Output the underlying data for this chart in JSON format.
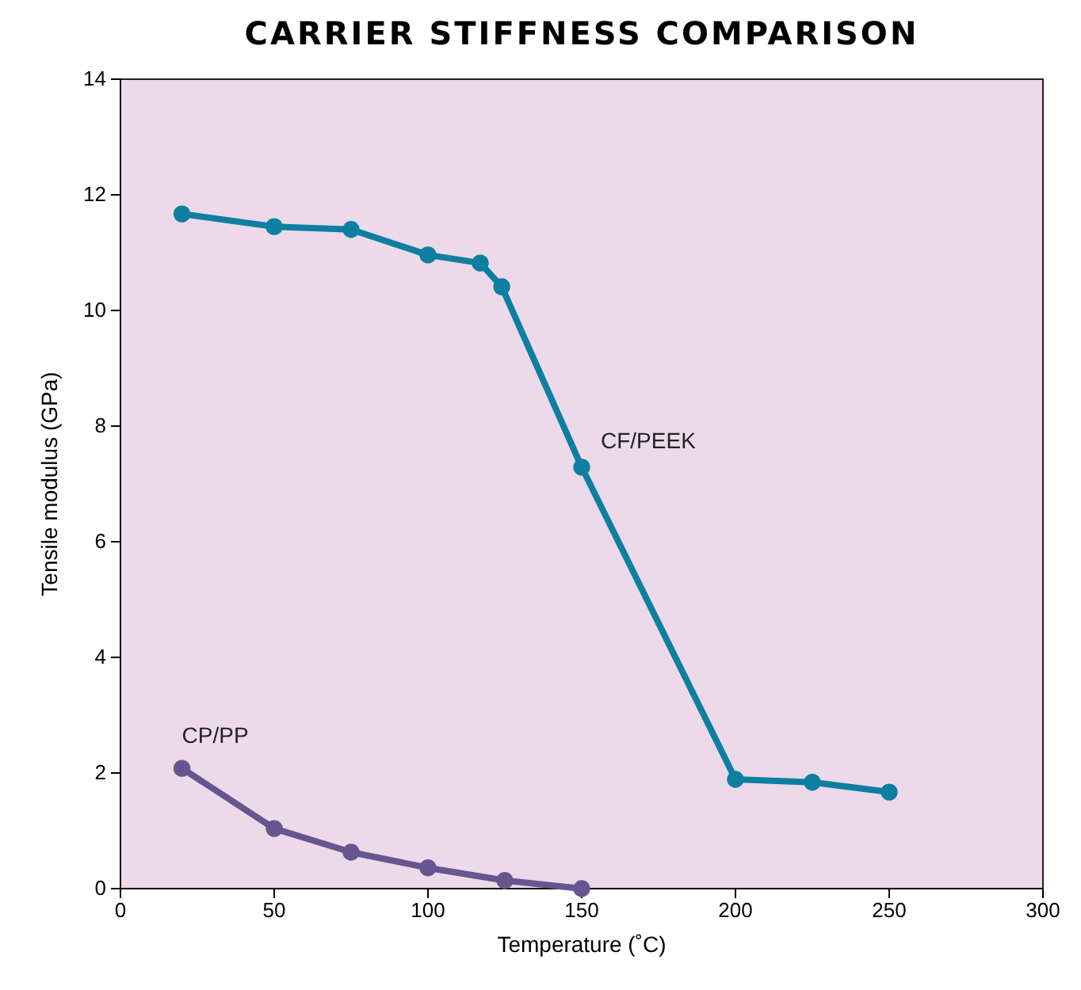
{
  "chart_data": {
    "type": "line",
    "title": "CARRIER STIFFNESS COMPARISON",
    "xlabel": "Temperature (˚C)",
    "ylabel": "Tensile modulus (GPa)",
    "xlim": [
      0,
      300
    ],
    "xticks": [
      0,
      50,
      100,
      150,
      200,
      250,
      300
    ],
    "ylim": [
      0,
      14
    ],
    "yticks": [
      0,
      2,
      4,
      6,
      8,
      10,
      12,
      14
    ],
    "marker": "circle",
    "grid": false,
    "series": [
      {
        "name": "CF/PEEK",
        "color": "#0e7fa0",
        "x": [
          20,
          50,
          75,
          100,
          117,
          124,
          150,
          200,
          225,
          250
        ],
        "values": [
          11.67,
          11.45,
          11.4,
          10.96,
          10.82,
          10.41,
          7.29,
          1.89,
          1.84,
          1.67
        ]
      },
      {
        "name": "CP/PP",
        "color": "#66558f",
        "x": [
          20,
          50,
          75,
          100,
          125,
          150
        ],
        "values": [
          2.08,
          1.04,
          0.63,
          0.36,
          0.14,
          0
        ]
      }
    ]
  }
}
